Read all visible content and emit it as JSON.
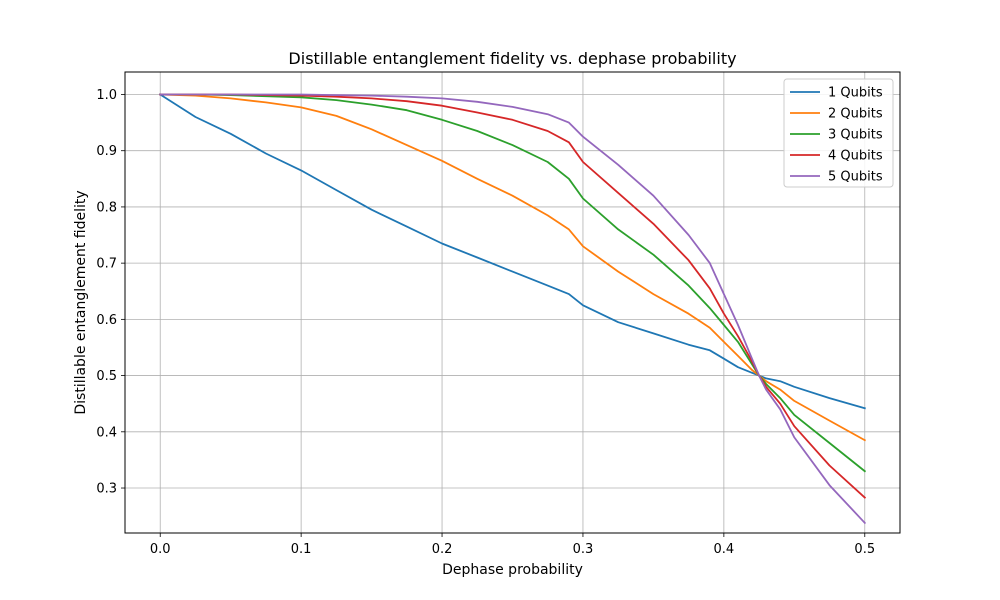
{
  "chart_data": {
    "type": "line",
    "title": "Distillable entanglement fidelity vs. dephase probability",
    "xlabel": "Dephase probability",
    "ylabel": "Distillable entanglement fidelity",
    "xlim": [
      -0.025,
      0.525
    ],
    "ylim": [
      0.22,
      1.04
    ],
    "xticks": [
      0.0,
      0.1,
      0.2,
      0.3,
      0.4,
      0.5
    ],
    "xtick_labels": [
      "0.0",
      "0.1",
      "0.2",
      "0.3",
      "0.4",
      "0.5"
    ],
    "yticks": [
      0.3,
      0.4,
      0.5,
      0.6,
      0.7,
      0.8,
      0.9,
      1.0
    ],
    "ytick_labels": [
      "0.3",
      "0.4",
      "0.5",
      "0.6",
      "0.7",
      "0.8",
      "0.9",
      "1.0"
    ],
    "grid": true,
    "legend_position": "top-right",
    "x": [
      0.0,
      0.025,
      0.05,
      0.075,
      0.1,
      0.125,
      0.15,
      0.175,
      0.2,
      0.225,
      0.25,
      0.275,
      0.29,
      0.3,
      0.325,
      0.35,
      0.375,
      0.39,
      0.4,
      0.41,
      0.42,
      0.425,
      0.43,
      0.44,
      0.45,
      0.475,
      0.5
    ],
    "series": [
      {
        "name": "1 Qubits",
        "color": "#1f77b4",
        "values": [
          1.0,
          0.96,
          0.93,
          0.895,
          0.865,
          0.83,
          0.795,
          0.765,
          0.735,
          0.71,
          0.685,
          0.66,
          0.645,
          0.625,
          0.595,
          0.575,
          0.555,
          0.545,
          0.53,
          0.515,
          0.505,
          0.5,
          0.495,
          0.49,
          0.48,
          0.46,
          0.442
        ]
      },
      {
        "name": "2 Qubits",
        "color": "#ff7f0e",
        "values": [
          1.0,
          0.998,
          0.993,
          0.986,
          0.977,
          0.962,
          0.938,
          0.91,
          0.882,
          0.85,
          0.82,
          0.785,
          0.76,
          0.73,
          0.685,
          0.645,
          0.61,
          0.585,
          0.56,
          0.535,
          0.51,
          0.5,
          0.49,
          0.475,
          0.455,
          0.42,
          0.385
        ]
      },
      {
        "name": "3 Qubits",
        "color": "#2ca02c",
        "values": [
          1.0,
          1.0,
          0.999,
          0.997,
          0.995,
          0.99,
          0.982,
          0.972,
          0.955,
          0.935,
          0.91,
          0.88,
          0.85,
          0.815,
          0.76,
          0.715,
          0.66,
          0.62,
          0.59,
          0.56,
          0.52,
          0.5,
          0.485,
          0.46,
          0.43,
          0.38,
          0.33
        ]
      },
      {
        "name": "4 Qubits",
        "color": "#d62728",
        "values": [
          1.0,
          1.0,
          1.0,
          0.999,
          0.998,
          0.996,
          0.993,
          0.988,
          0.98,
          0.968,
          0.955,
          0.935,
          0.915,
          0.88,
          0.825,
          0.77,
          0.705,
          0.655,
          0.61,
          0.57,
          0.525,
          0.5,
          0.48,
          0.45,
          0.41,
          0.34,
          0.283
        ]
      },
      {
        "name": "5 Qubits",
        "color": "#9467bd",
        "values": [
          1.0,
          1.0,
          1.0,
          1.0,
          1.0,
          0.999,
          0.998,
          0.996,
          0.993,
          0.987,
          0.978,
          0.965,
          0.95,
          0.925,
          0.875,
          0.82,
          0.75,
          0.7,
          0.645,
          0.59,
          0.53,
          0.5,
          0.475,
          0.44,
          0.39,
          0.305,
          0.238
        ]
      }
    ]
  }
}
